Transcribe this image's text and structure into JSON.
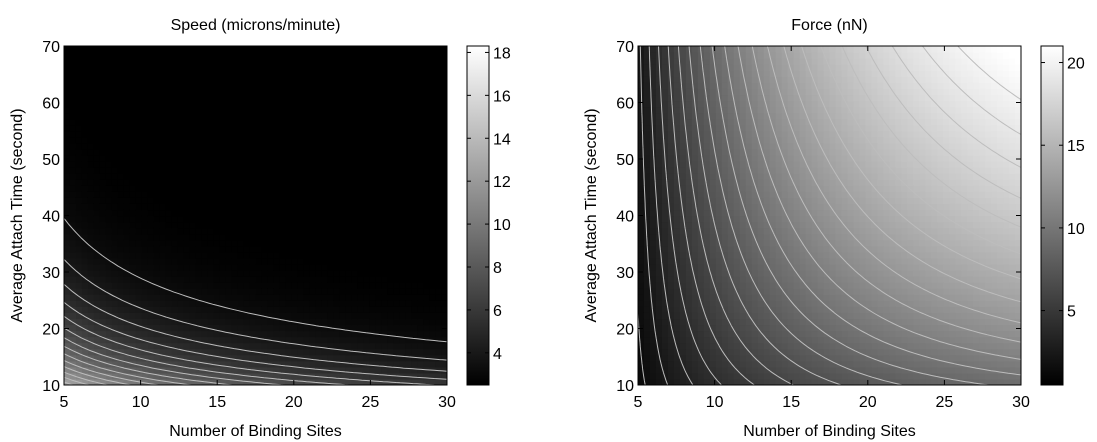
{
  "chart_data": [
    {
      "type": "heatmap",
      "title": "Speed (microns/minute)",
      "xlabel": "Number of Binding Sites",
      "ylabel": "Average Attach Time (second)",
      "xlim": [
        5,
        30
      ],
      "ylim": [
        10,
        70
      ],
      "x_ticks": [
        "5",
        "10",
        "15",
        "20",
        "25",
        "30"
      ],
      "y_ticks": [
        "10",
        "20",
        "30",
        "40",
        "50",
        "60",
        "70"
      ],
      "colorbar_ticks": [
        "4",
        "6",
        "8",
        "10",
        "12",
        "14",
        "16",
        "18"
      ],
      "color_range": [
        2.5,
        18.3
      ],
      "colormap": "gray",
      "contour_color": "#bdbdbd",
      "approx_values": [
        {
          "x": 5,
          "y": 10,
          "value": 18.3
        },
        {
          "x": 10,
          "y": 10,
          "value": 18.0
        },
        {
          "x": 30,
          "y": 10,
          "value": 16.0
        },
        {
          "x": 5,
          "y": 20,
          "value": 11.0
        },
        {
          "x": 5,
          "y": 40,
          "value": 5.5
        },
        {
          "x": 5,
          "y": 70,
          "value": 3.0
        },
        {
          "x": 30,
          "y": 70,
          "value": 2.5
        }
      ]
    },
    {
      "type": "heatmap",
      "title": "Force (nN)",
      "xlabel": "Number of Binding Sites",
      "ylabel": "Average Attach Time (second)",
      "xlim": [
        5,
        30
      ],
      "ylim": [
        10,
        70
      ],
      "x_ticks": [
        "5",
        "10",
        "15",
        "20",
        "25",
        "30"
      ],
      "y_ticks": [
        "10",
        "20",
        "30",
        "40",
        "50",
        "60",
        "70"
      ],
      "colorbar_ticks": [
        "5",
        "10",
        "15",
        "20"
      ],
      "color_range": [
        0.5,
        21
      ],
      "colormap": "gray",
      "contour_color": "#bdbdbd",
      "approx_values": [
        {
          "x": 5,
          "y": 10,
          "value": 0.5
        },
        {
          "x": 30,
          "y": 10,
          "value": 13.0
        },
        {
          "x": 5,
          "y": 70,
          "value": 1.5
        },
        {
          "x": 30,
          "y": 70,
          "value": 21.0
        },
        {
          "x": 20,
          "y": 40,
          "value": 12.0
        }
      ]
    }
  ]
}
